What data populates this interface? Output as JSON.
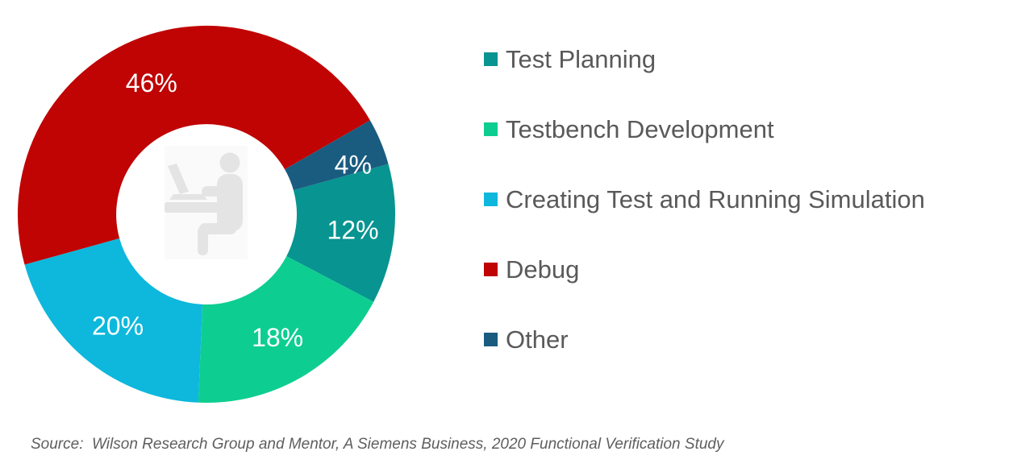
{
  "chart_data": {
    "type": "pie",
    "subtype": "donut",
    "title": "",
    "categories": [
      "Test Planning",
      "Testbench Development",
      "Creating Test and Running Simulation",
      "Debug",
      "Other"
    ],
    "values": [
      12,
      18,
      20,
      46,
      4
    ],
    "slice_labels": [
      "12%",
      "18%",
      "20%",
      "46%",
      "4%"
    ],
    "colors": [
      "#089490",
      "#0DCE90",
      "#0DB8DC",
      "#C00303",
      "#195C80"
    ],
    "start_angle_deg": 74.5,
    "direction": "clockwise",
    "donut_hole_ratio": 0.48,
    "legend_position": "right",
    "slice_label_color": "#FFFFFF"
  },
  "center_icon": {
    "name": "person-working-at-laptop-watermark",
    "color": "#E4E4E4"
  },
  "legend_text_color": "#595959",
  "source_note": "Source:  Wilson Research Group and Mentor, A Siemens Business, 2020 Functional Verification Study"
}
